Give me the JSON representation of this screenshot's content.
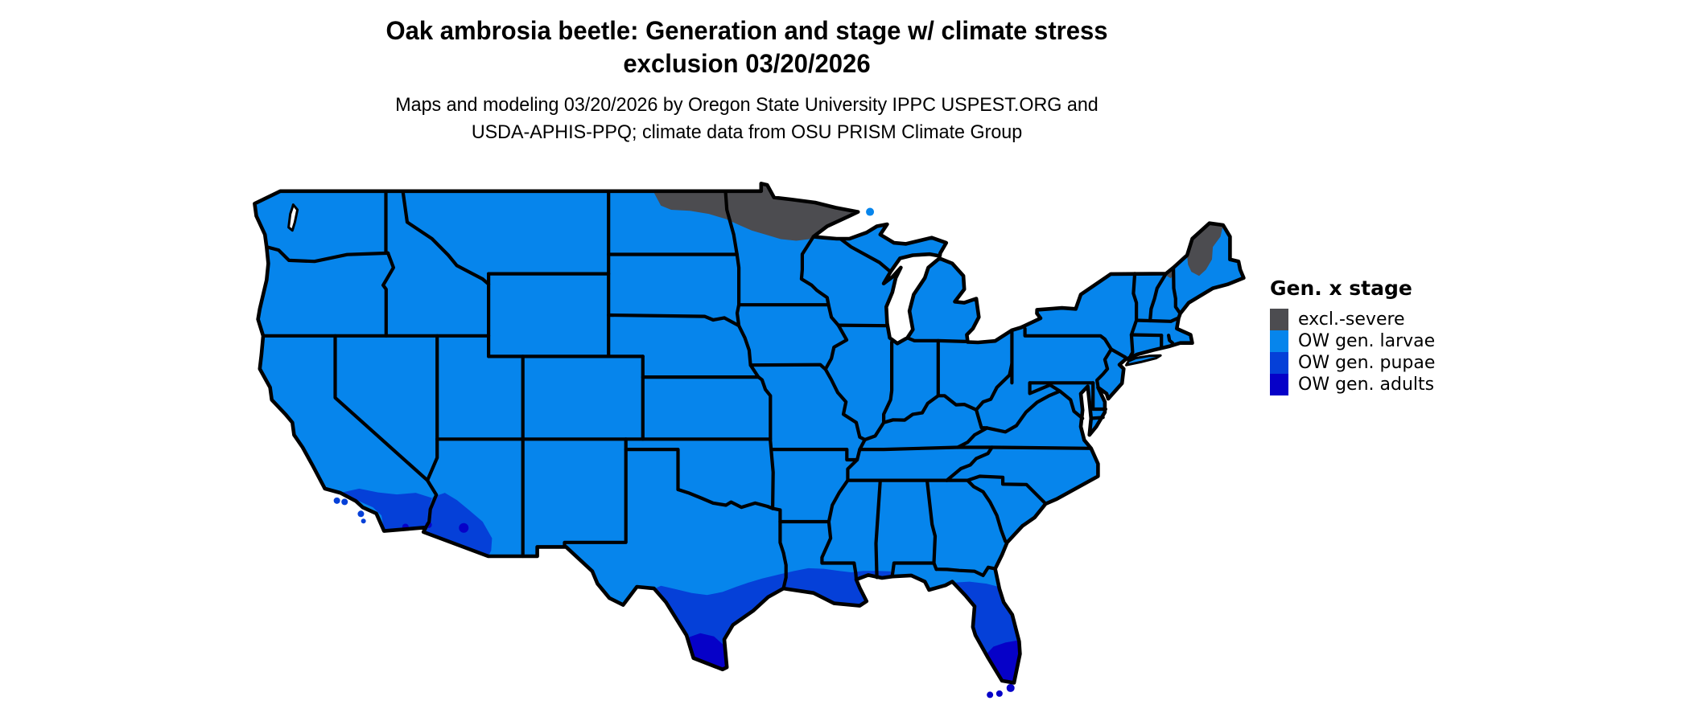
{
  "title": {
    "line1": "Oak ambrosia beetle: Generation and stage w/ climate stress",
    "line2": "exclusion 03/20/2026"
  },
  "subtitle": {
    "line1": "Maps and modeling 03/20/2026 by Oregon State University IPPC USPEST.ORG and",
    "line2": "USDA-APHIS-PPQ; climate data from OSU PRISM Climate Group"
  },
  "legend": {
    "title": "Gen. x stage",
    "items": [
      {
        "label": "excl.-severe",
        "color": "#4C4C50"
      },
      {
        "label": "OW gen. larvae",
        "color": "#0685EC"
      },
      {
        "label": "OW gen. pupae",
        "color": "#0540D8"
      },
      {
        "label": "OW gen. adults",
        "color": "#0601C8"
      }
    ]
  },
  "map": {
    "region": "Continental United States",
    "background": "#FFFFFF",
    "border_color": "#000000",
    "base_color": "#0685EC"
  }
}
